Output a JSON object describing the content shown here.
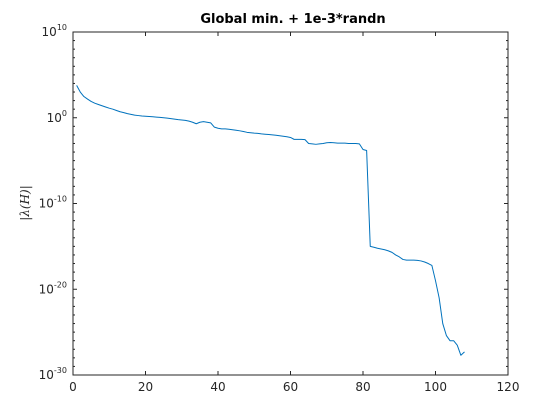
{
  "chart_data": {
    "type": "line",
    "title": "Global min. + 1e-3*randn",
    "xlabel": "",
    "ylabel": "|λ(H)|",
    "xlim": [
      0,
      120
    ],
    "ylim": [
      1e-30,
      10000000000.0
    ],
    "yscale": "log",
    "grid": false,
    "x_ticks": [
      "0",
      "20",
      "40",
      "60",
      "80",
      "100",
      "120"
    ],
    "y_ticks": [
      {
        "base": "10",
        "exp": "-30"
      },
      {
        "base": "10",
        "exp": "-20"
      },
      {
        "base": "10",
        "exp": "-10"
      },
      {
        "base": "10",
        "exp": "0"
      },
      {
        "base": "10",
        "exp": "10"
      }
    ],
    "series": [
      {
        "color": "#0072bd",
        "points": [
          [
            1,
            6000
          ],
          [
            2,
            1000
          ],
          [
            3,
            300
          ],
          [
            4,
            150
          ],
          [
            5,
            80
          ],
          [
            6,
            50
          ],
          [
            7,
            35
          ],
          [
            8,
            25
          ],
          [
            9,
            18
          ],
          [
            10,
            13
          ],
          [
            11,
            10
          ],
          [
            12,
            7
          ],
          [
            13,
            5
          ],
          [
            14,
            4
          ],
          [
            15,
            3
          ],
          [
            16,
            2.5
          ],
          [
            17,
            2
          ],
          [
            18,
            1.8
          ],
          [
            19,
            1.6
          ],
          [
            20,
            1.5
          ],
          [
            21,
            1.4
          ],
          [
            22,
            1.3
          ],
          [
            23,
            1.2
          ],
          [
            24,
            1.1
          ],
          [
            25,
            1.0
          ],
          [
            26,
            0.9
          ],
          [
            27,
            0.8
          ],
          [
            28,
            0.7
          ],
          [
            29,
            0.6
          ],
          [
            30,
            0.55
          ],
          [
            31,
            0.5
          ],
          [
            32,
            0.4
          ],
          [
            33,
            0.3
          ],
          [
            34,
            0.2
          ],
          [
            35,
            0.3
          ],
          [
            36,
            0.35
          ],
          [
            37,
            0.3
          ],
          [
            38,
            0.25
          ],
          [
            39,
            0.08
          ],
          [
            40,
            0.06
          ],
          [
            41,
            0.05
          ],
          [
            42,
            0.05
          ],
          [
            43,
            0.045
          ],
          [
            44,
            0.04
          ],
          [
            45,
            0.035
          ],
          [
            46,
            0.03
          ],
          [
            47,
            0.025
          ],
          [
            48,
            0.02
          ],
          [
            49,
            0.018
          ],
          [
            50,
            0.016
          ],
          [
            51,
            0.015
          ],
          [
            52,
            0.013
          ],
          [
            53,
            0.012
          ],
          [
            54,
            0.011
          ],
          [
            55,
            0.01
          ],
          [
            56,
            0.009
          ],
          [
            57,
            0.008
          ],
          [
            58,
            0.007
          ],
          [
            59,
            0.006
          ],
          [
            60,
            0.005
          ],
          [
            61,
            0.003
          ],
          [
            62,
            0.003
          ],
          [
            63,
            0.003
          ],
          [
            64,
            0.0028
          ],
          [
            65,
            0.001
          ],
          [
            66,
            0.0009
          ],
          [
            67,
            0.0008
          ],
          [
            68,
            0.0009
          ],
          [
            69,
            0.001
          ],
          [
            70,
            0.0012
          ],
          [
            71,
            0.0013
          ],
          [
            72,
            0.0012
          ],
          [
            73,
            0.0011
          ],
          [
            74,
            0.0011
          ],
          [
            75,
            0.0011
          ],
          [
            76,
            0.001
          ],
          [
            77,
            0.001
          ],
          [
            78,
            0.001
          ],
          [
            79,
            0.0009
          ],
          [
            80,
            0.0002
          ],
          [
            81,
            0.00015
          ],
          [
            82,
            1e-15
          ],
          [
            83,
            8e-16
          ],
          [
            84,
            6e-16
          ],
          [
            85,
            5e-16
          ],
          [
            86,
            4e-16
          ],
          [
            87,
            3e-16
          ],
          [
            88,
            2e-16
          ],
          [
            89,
            1e-16
          ],
          [
            90,
            6e-17
          ],
          [
            91,
            3e-17
          ],
          [
            92,
            2.5e-17
          ],
          [
            93,
            2.5e-17
          ],
          [
            94,
            2.5e-17
          ],
          [
            95,
            2.3e-17
          ],
          [
            96,
            2e-17
          ],
          [
            97,
            1.5e-17
          ],
          [
            98,
            1e-17
          ],
          [
            99,
            6e-18
          ],
          [
            100,
            1e-19
          ],
          [
            101,
            1e-21
          ],
          [
            102,
            1e-24
          ],
          [
            103,
            4e-26
          ],
          [
            104,
            1e-26
          ],
          [
            105,
            1e-26
          ],
          [
            106,
            3e-27
          ],
          [
            107,
            2e-28
          ],
          [
            108,
            5e-28
          ]
        ]
      }
    ]
  }
}
